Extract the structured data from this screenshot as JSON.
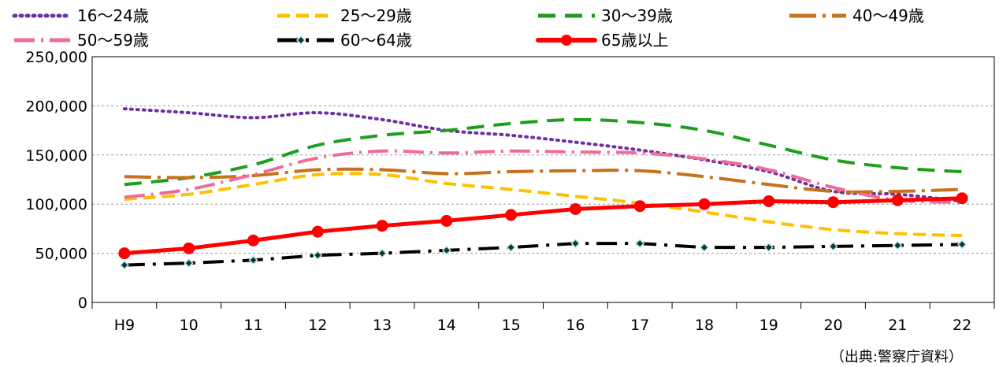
{
  "chart_data": {
    "type": "line",
    "categories": [
      "H9",
      "10",
      "11",
      "12",
      "13",
      "14",
      "15",
      "16",
      "17",
      "18",
      "19",
      "20",
      "21",
      "22"
    ],
    "ylim": [
      0,
      250000
    ],
    "yticks": [
      0,
      50000,
      100000,
      150000,
      200000,
      250000
    ],
    "ytick_labels": [
      "0",
      "50,000",
      "100,000",
      "150,000",
      "200,000",
      "250,000"
    ],
    "grid": "horizontal-dashed",
    "legend_position": "top",
    "source_note": "（出典:警察庁資料）",
    "series": [
      {
        "name": "16～24歳",
        "color": "#7030A0",
        "style": "dotted",
        "values": [
          197000,
          193000,
          188000,
          193000,
          186000,
          175000,
          170000,
          163000,
          155000,
          145000,
          133000,
          113000,
          110000,
          103000
        ]
      },
      {
        "name": "25～29歳",
        "color": "#FFC000",
        "style": "dashed",
        "values": [
          105000,
          110000,
          120000,
          130000,
          130000,
          121000,
          115000,
          108000,
          101000,
          92000,
          82000,
          74000,
          70000,
          68000
        ]
      },
      {
        "name": "30～39歳",
        "color": "#1E9E1E",
        "style": "dashed-long",
        "values": [
          120000,
          127000,
          140000,
          160000,
          170000,
          175000,
          182000,
          186000,
          183000,
          175000,
          160000,
          145000,
          137000,
          133000
        ]
      },
      {
        "name": "40～49歳",
        "color": "#C8701A",
        "style": "long-dash-dot",
        "values": [
          128000,
          127000,
          129000,
          135000,
          135000,
          131000,
          133000,
          134000,
          134000,
          128000,
          120000,
          113000,
          113000,
          115000
        ]
      },
      {
        "name": "50～59歳",
        "color": "#F06A9A",
        "style": "dash-dot",
        "values": [
          107000,
          115000,
          130000,
          147000,
          154000,
          152000,
          154000,
          153000,
          152000,
          146000,
          135000,
          117000,
          104000,
          102000
        ]
      },
      {
        "name": "60～64歳",
        "color": "#000000",
        "style": "dash-dot-marker",
        "values": [
          38000,
          40000,
          43000,
          48000,
          50000,
          53000,
          56000,
          60000,
          60000,
          56000,
          56000,
          57000,
          58000,
          59000
        ]
      },
      {
        "name": "65歳以上",
        "color": "#FF0000",
        "style": "solid-marker",
        "values": [
          50000,
          55000,
          63000,
          72000,
          78000,
          83000,
          89000,
          95000,
          98000,
          100000,
          103000,
          102000,
          104000,
          106000
        ]
      }
    ]
  }
}
